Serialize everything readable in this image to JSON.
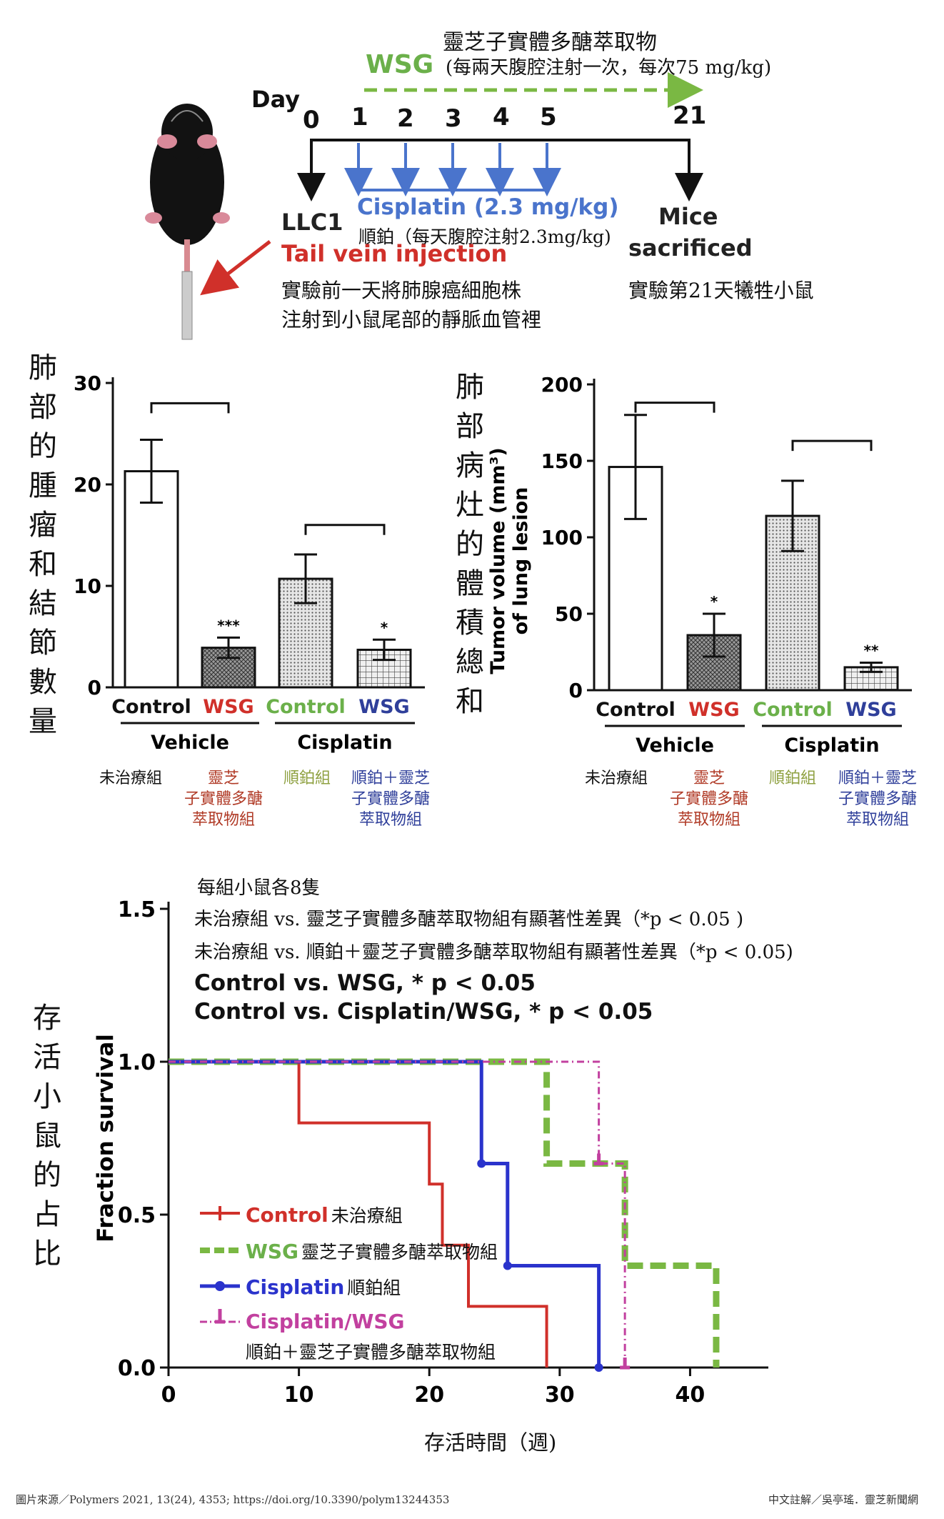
{
  "schema": {
    "wsg_cn": "靈芝子實體多醣萃取物",
    "wsg_label": "WSG",
    "wsg_dose_cn": "(每兩天腹腔注射一次，每次75 mg/kg)",
    "day_label": "Day",
    "days": [
      "0",
      "1",
      "2",
      "3",
      "4",
      "5",
      "21"
    ],
    "cisplatin_label": "Cisplatin (2.3 mg/kg)",
    "cisplatin_cn": "順鉑（每天腹腔注射2.3mg/kg)",
    "llc1": "LLC1",
    "tail_vein": "Tail vein injection",
    "tail_cn_1": "實驗前一天將肺腺癌細胞株",
    "tail_cn_2": "注射到小鼠尾部的靜脈血管裡",
    "mice": "Mice",
    "sacrificed": "sacrificed",
    "sacrificed_cn": "實驗第21天犧牲小鼠"
  },
  "left_bar": {
    "ylabel_cn": [
      "肺",
      "部",
      "的",
      "腫",
      "瘤",
      "和",
      "結",
      "節",
      "數",
      "量"
    ]
  },
  "right_bar": {
    "ylabel_cn": [
      "肺",
      "部",
      "病",
      "灶",
      "的",
      "體",
      "積",
      "總",
      "和"
    ],
    "ylabel_en_1": "Tumor volume (mm³)",
    "ylabel_en_2": "of lung lesion"
  },
  "group_labels_cn": {
    "control": "未治療組",
    "wsg_1": "靈芝",
    "wsg_2": "子實體多醣",
    "wsg_3": "萃取物組",
    "cis": "順鉑組",
    "cw_1": "順鉑＋靈芝",
    "cw_2": "子實體多醣",
    "cw_3": "萃取物組"
  },
  "survival": {
    "ylabel_cn": [
      "存",
      "活",
      "小",
      "鼠",
      "的",
      "占",
      "比"
    ],
    "note_1": "每組小鼠各8隻",
    "note_2": "未治療組 vs. 靈芝子實體多醣萃取物組有顯著性差異（*p < 0.05 )",
    "note_3": "未治療組 vs. 順鉑＋靈芝子實體多醣萃取物組有顯著性差異（*p < 0.05)",
    "stat_1": "Control vs. WSG, * p < 0.05",
    "stat_2": "Control vs. Cisplatin/WSG, * p < 0.05",
    "xlabel_cn": "存活時間（週)",
    "legend": [
      {
        "en": "Control",
        "cn": "未治療組"
      },
      {
        "en": "WSG",
        "cn": "靈芝子實體多醣萃取物組"
      },
      {
        "en": "Cisplatin",
        "cn": "順鉑組"
      },
      {
        "en": "Cisplatin/WSG",
        "cn": "順鉑＋靈芝子實體多醣萃取物組"
      }
    ]
  },
  "footer": {
    "source": "圖片來源／Polymers 2021, 13(24), 4353; https://doi.org/10.3390/polym13244353",
    "credit": "中文註解／吳亭瑤．靈芝新聞網"
  },
  "chart_data": [
    {
      "type": "bar",
      "id": "nodules",
      "categories": [
        "Control",
        "WSG",
        "Control",
        "WSG"
      ],
      "groups": [
        "Vehicle",
        "Cisplatin"
      ],
      "values": [
        21.3,
        3.9,
        10.7,
        3.7
      ],
      "errors": [
        3.1,
        1.0,
        2.4,
        1.0
      ],
      "significance": [
        "",
        "***",
        "",
        "*"
      ],
      "yticks": [
        0,
        10,
        20,
        30
      ],
      "ylim": [
        0,
        30
      ],
      "colors": {
        "control": "#d0302a",
        "wsg": "#2f3f9a",
        "cis_control": "#6bb04a"
      }
    },
    {
      "type": "bar",
      "id": "tumor_volume",
      "categories": [
        "Control",
        "WSG",
        "Control",
        "WSG"
      ],
      "groups": [
        "Vehicle",
        "Cisplatin"
      ],
      "values": [
        146,
        36,
        114,
        15
      ],
      "errors": [
        34,
        14,
        23,
        3
      ],
      "significance": [
        "",
        "*",
        "",
        "**"
      ],
      "yticks": [
        0,
        50,
        100,
        150,
        200
      ],
      "ylim": [
        0,
        200
      ],
      "ylabel": "Tumor volume (mm³) of lung lesion"
    },
    {
      "type": "line",
      "id": "survival",
      "ylabel": "Fraction survival",
      "xticks": [
        0,
        10,
        20,
        30,
        40
      ],
      "yticks": [
        "0.0",
        "0.5",
        "1.0",
        "1.5"
      ],
      "xlim": [
        0,
        46
      ],
      "ylim": [
        0,
        1.5
      ],
      "series": [
        {
          "name": "Control",
          "color": "#d0302a",
          "points": [
            [
              0,
              1.0
            ],
            [
              10,
              1.0
            ],
            [
              10,
              0.8
            ],
            [
              20,
              0.8
            ],
            [
              20,
              0.6
            ],
            [
              21,
              0.6
            ],
            [
              21,
              0.4
            ],
            [
              23,
              0.4
            ],
            [
              23,
              0.2
            ],
            [
              29,
              0.2
            ],
            [
              29,
              0.0
            ]
          ]
        },
        {
          "name": "WSG",
          "color": "#7ab843",
          "points": [
            [
              0,
              1.0
            ],
            [
              29,
              1.0
            ],
            [
              29,
              0.667
            ],
            [
              35,
              0.667
            ],
            [
              35,
              0.333
            ],
            [
              42,
              0.333
            ],
            [
              42,
              0.0
            ]
          ]
        },
        {
          "name": "Cisplatin",
          "color": "#2a33cc",
          "points": [
            [
              0,
              1.0
            ],
            [
              24,
              1.0
            ],
            [
              24,
              0.667
            ],
            [
              26,
              0.667
            ],
            [
              26,
              0.333
            ],
            [
              33,
              0.333
            ],
            [
              33,
              0.0
            ]
          ]
        },
        {
          "name": "Cisplatin/WSG",
          "color": "#c2409f",
          "points": [
            [
              0,
              1.0
            ],
            [
              33,
              1.0
            ],
            [
              33,
              0.667
            ],
            [
              35,
              0.667
            ],
            [
              35,
              0.0
            ]
          ]
        }
      ]
    }
  ]
}
